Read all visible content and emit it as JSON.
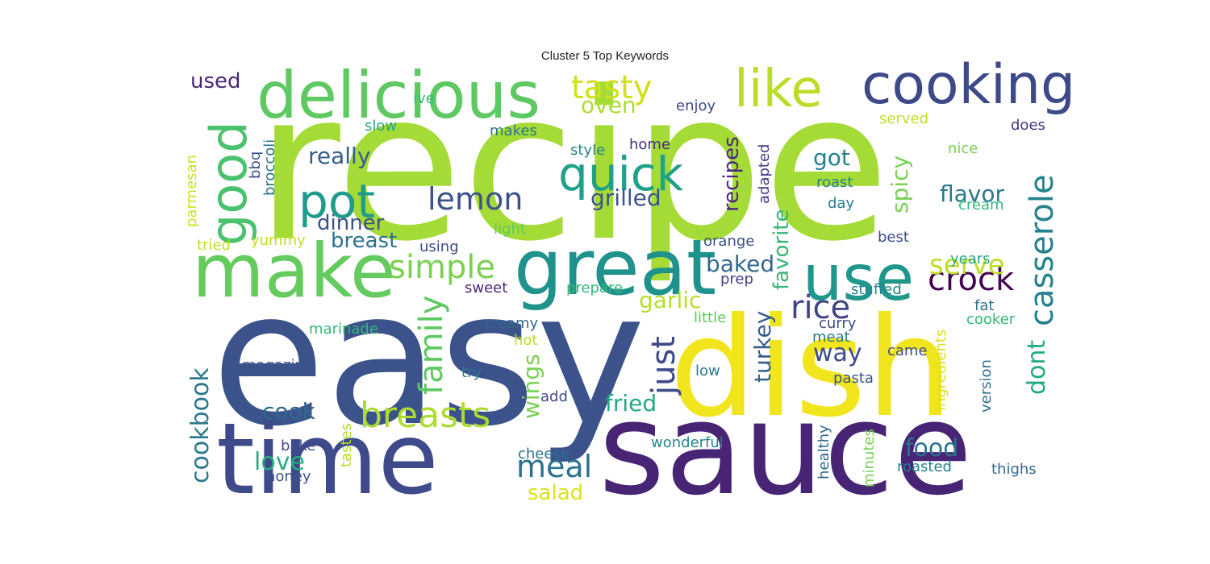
{
  "chart_data": {
    "type": "wordcloud",
    "title": "Cluster 5 Top Keywords",
    "background": "#ffffff",
    "colormap": "viridis",
    "words": [
      {
        "text": "recipe",
        "weight": 100,
        "color": "#a5db36"
      },
      {
        "text": "easy",
        "weight": 95,
        "color": "#3b528b"
      },
      {
        "text": "dish",
        "weight": 72,
        "color": "#f1e51d"
      },
      {
        "text": "sauce",
        "weight": 65,
        "color": "#482475"
      },
      {
        "text": "time",
        "weight": 52,
        "color": "#3e4a89"
      },
      {
        "text": "great",
        "weight": 38,
        "color": "#20928c"
      },
      {
        "text": "make",
        "weight": 37,
        "color": "#65cb5e"
      },
      {
        "text": "delicious",
        "weight": 33,
        "color": "#5ec962"
      },
      {
        "text": "use",
        "weight": 32,
        "color": "#1f988b"
      },
      {
        "text": "cooking",
        "weight": 28,
        "color": "#3e4989"
      },
      {
        "text": "like",
        "weight": 27,
        "color": "#bade28"
      },
      {
        "text": "good",
        "weight": 27,
        "color": "#4ac16d"
      },
      {
        "text": "quick",
        "weight": 26,
        "color": "#1fa088"
      },
      {
        "text": "pot",
        "weight": 25,
        "color": "#1e9b8a"
      },
      {
        "text": "breasts",
        "weight": 19,
        "color": "#addc30"
      },
      {
        "text": "casserole",
        "weight": 18,
        "color": "#26828e"
      },
      {
        "text": "tasty",
        "weight": 17,
        "color": "#d0e11c"
      },
      {
        "text": "simple",
        "weight": 17,
        "color": "#7ad151"
      },
      {
        "text": "family",
        "weight": 17,
        "color": "#5ec962"
      },
      {
        "text": "rice",
        "weight": 17,
        "color": "#414487"
      },
      {
        "text": "crock",
        "weight": 17,
        "color": "#440154"
      },
      {
        "text": "just",
        "weight": 17,
        "color": "#3e4a89"
      },
      {
        "text": "lemon",
        "weight": 16,
        "color": "#3b528b"
      },
      {
        "text": "meal",
        "weight": 16,
        "color": "#2c728e"
      },
      {
        "text": "serve",
        "weight": 15,
        "color": "#bddf26"
      },
      {
        "text": "cookbook",
        "weight": 14,
        "color": "#2a788e"
      },
      {
        "text": "way",
        "weight": 13,
        "color": "#3e4a89"
      },
      {
        "text": "food",
        "weight": 13,
        "color": "#2c728e"
      },
      {
        "text": "dont",
        "weight": 13,
        "color": "#22a884"
      },
      {
        "text": "love",
        "weight": 13,
        "color": "#27ad81"
      },
      {
        "text": "oven",
        "weight": 13,
        "color": "#addc30"
      },
      {
        "text": "got",
        "weight": 13,
        "color": "#26828e"
      },
      {
        "text": "cook",
        "weight": 12,
        "color": "#31688e"
      },
      {
        "text": "turkey",
        "weight": 12,
        "color": "#365c8d"
      },
      {
        "text": "baked",
        "weight": 12,
        "color": "#31688e"
      },
      {
        "text": "fried",
        "weight": 12,
        "color": "#22a884"
      },
      {
        "text": "flavor",
        "weight": 12,
        "color": "#2a788e"
      },
      {
        "text": "wings",
        "weight": 12,
        "color": "#7ad151"
      },
      {
        "text": "really",
        "weight": 12,
        "color": "#365c8d"
      },
      {
        "text": "spicy",
        "weight": 12,
        "color": "#7ad151"
      },
      {
        "text": "grilled",
        "weight": 12,
        "color": "#3b528b"
      },
      {
        "text": "garlic",
        "weight": 11,
        "color": "#b5de2b"
      },
      {
        "text": "favorite",
        "weight": 11,
        "color": "#35b779"
      },
      {
        "text": "recipes",
        "weight": 11,
        "color": "#482878"
      },
      {
        "text": "breast",
        "weight": 11,
        "color": "#2c728e"
      },
      {
        "text": "salad",
        "weight": 11,
        "color": "#dde318"
      },
      {
        "text": "dinner",
        "weight": 11,
        "color": "#3b528b"
      },
      {
        "text": "used",
        "weight": 11,
        "color": "#482878"
      },
      {
        "text": "enjoy",
        "weight": 8,
        "color": "#3e4a89"
      },
      {
        "text": "served",
        "weight": 8,
        "color": "#bddf26"
      },
      {
        "text": "ive",
        "weight": 8,
        "color": "#35b779"
      },
      {
        "text": "slow",
        "weight": 8,
        "color": "#22a884"
      },
      {
        "text": "makes",
        "weight": 8,
        "color": "#2a788e"
      },
      {
        "text": "style",
        "weight": 8,
        "color": "#26828e"
      },
      {
        "text": "home",
        "weight": 8,
        "color": "#472c7a"
      },
      {
        "text": "does",
        "weight": 8,
        "color": "#453781"
      },
      {
        "text": "nice",
        "weight": 8,
        "color": "#7ad151"
      },
      {
        "text": "roast",
        "weight": 8,
        "color": "#26828e"
      },
      {
        "text": "day",
        "weight": 8,
        "color": "#2a788e"
      },
      {
        "text": "cream",
        "weight": 8,
        "color": "#35b779"
      },
      {
        "text": "light",
        "weight": 8,
        "color": "#5ec962"
      },
      {
        "text": "orange",
        "weight": 8,
        "color": "#3b528b"
      },
      {
        "text": "best",
        "weight": 8,
        "color": "#3e4a89"
      },
      {
        "text": "years",
        "weight": 8,
        "color": "#22a884"
      },
      {
        "text": "prep",
        "weight": 8,
        "color": "#433e85"
      },
      {
        "text": "prepare",
        "weight": 8,
        "color": "#35b779"
      },
      {
        "text": "sweet",
        "weight": 8,
        "color": "#482878"
      },
      {
        "text": "stuffed",
        "weight": 8,
        "color": "#26828e"
      },
      {
        "text": "using",
        "weight": 8,
        "color": "#3e4a89"
      },
      {
        "text": "yummy",
        "weight": 8,
        "color": "#bddf26"
      },
      {
        "text": "tried",
        "weight": 8,
        "color": "#c2df23"
      },
      {
        "text": "parmesan",
        "weight": 8,
        "color": "#d0e11c"
      },
      {
        "text": "bbq",
        "weight": 8,
        "color": "#3b528b"
      },
      {
        "text": "broccoli",
        "weight": 8,
        "color": "#2c728e"
      },
      {
        "text": "adapted",
        "weight": 8,
        "color": "#443a83"
      },
      {
        "text": "little",
        "weight": 8,
        "color": "#5ec962"
      },
      {
        "text": "curry",
        "weight": 8,
        "color": "#3e4a89"
      },
      {
        "text": "meat",
        "weight": 8,
        "color": "#2a788e"
      },
      {
        "text": "fat",
        "weight": 8,
        "color": "#2c728e"
      },
      {
        "text": "cooker",
        "weight": 8,
        "color": "#35b779"
      },
      {
        "text": "marinade",
        "weight": 8,
        "color": "#35b779"
      },
      {
        "text": "creamy",
        "weight": 8,
        "color": "#31688e"
      },
      {
        "text": "hot",
        "weight": 8,
        "color": "#bddf26"
      },
      {
        "text": "magazine",
        "weight": 8,
        "color": "#3b528b"
      },
      {
        "text": "try",
        "weight": 8,
        "color": "#2a788e"
      },
      {
        "text": "low",
        "weight": 8,
        "color": "#2a788e"
      },
      {
        "text": "came",
        "weight": 8,
        "color": "#3e4a89"
      },
      {
        "text": "pasta",
        "weight": 8,
        "color": "#3b528b"
      },
      {
        "text": "ingredients",
        "weight": 8,
        "color": "#dde318"
      },
      {
        "text": "version",
        "weight": 8,
        "color": "#2c728e"
      },
      {
        "text": "add",
        "weight": 8,
        "color": "#3e4a89"
      },
      {
        "text": "bake",
        "weight": 8,
        "color": "#3e4a89"
      },
      {
        "text": "tastes",
        "weight": 8,
        "color": "#b5de2b"
      },
      {
        "text": "honey",
        "weight": 8,
        "color": "#3b528b"
      },
      {
        "text": "cheese",
        "weight": 8,
        "color": "#2c728e"
      },
      {
        "text": "wonderful",
        "weight": 8,
        "color": "#26828e"
      },
      {
        "text": "healthy",
        "weight": 8,
        "color": "#31688e"
      },
      {
        "text": "minutes",
        "weight": 8,
        "color": "#7ad151"
      },
      {
        "text": "roasted",
        "weight": 8,
        "color": "#26828e"
      },
      {
        "text": "thighs",
        "weight": 8,
        "color": "#31688e"
      }
    ]
  }
}
